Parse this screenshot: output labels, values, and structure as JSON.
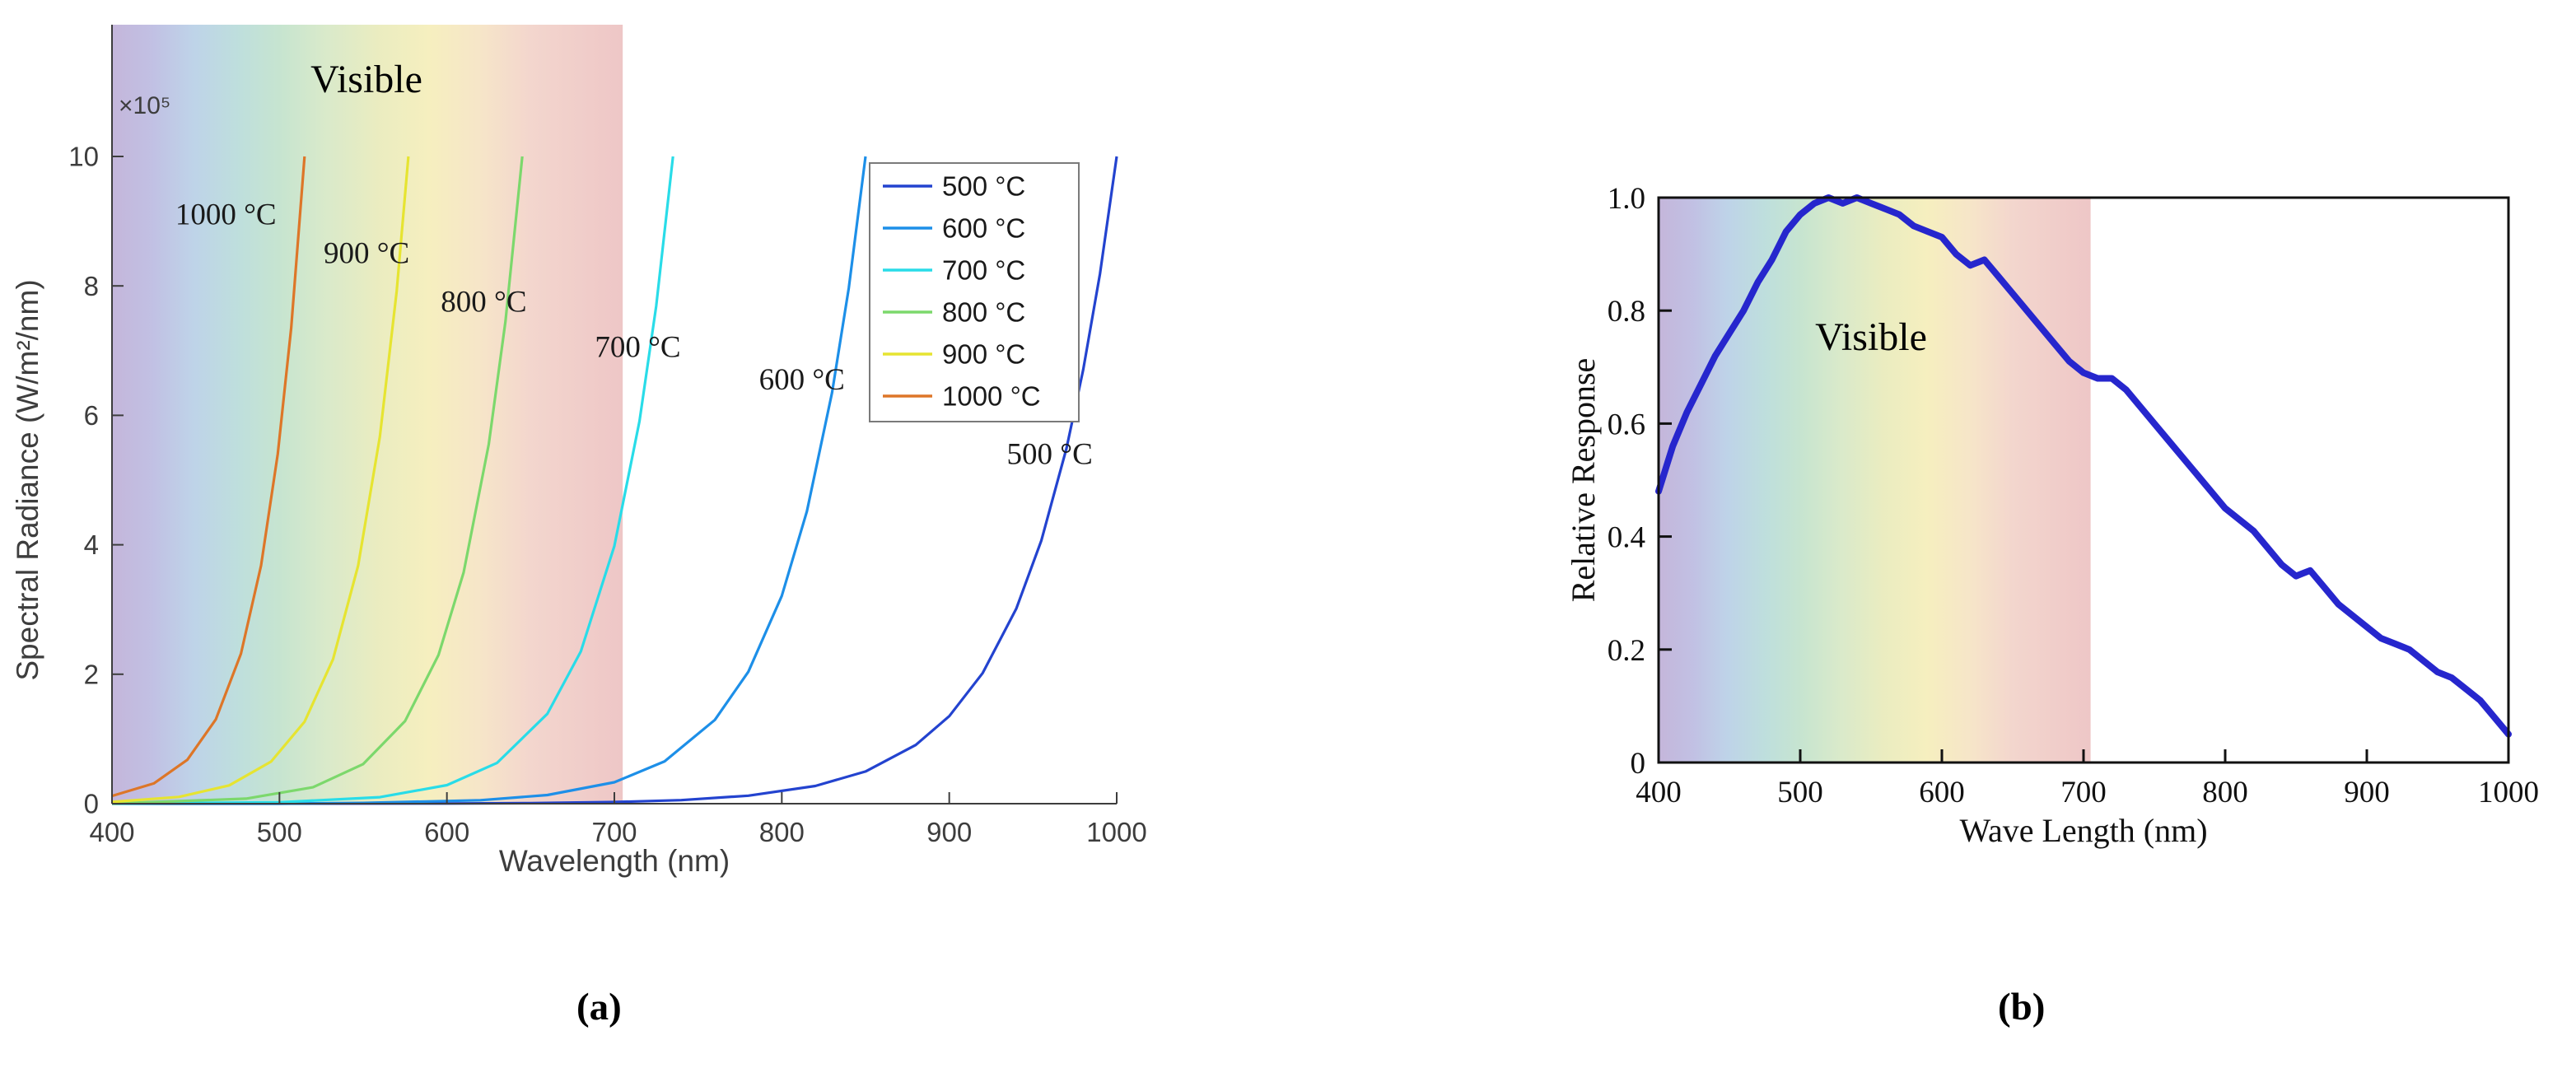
{
  "figure": {
    "captions": {
      "a": "(a)",
      "b": "(b)"
    }
  },
  "chart_data": [
    {
      "id": "spectral_radiance",
      "type": "line",
      "title": "",
      "xlabel": "Wavelength (nm)",
      "ylabel": "Spectral Radiance (W/m²/nm)",
      "y_exponent_label": "×10⁵",
      "xlim": [
        400,
        1000
      ],
      "ylim": [
        0,
        10
      ],
      "xticks": [
        400,
        500,
        600,
        700,
        800,
        900,
        1000
      ],
      "xtick_labels": [
        "400",
        "500",
        "600",
        "700",
        "800",
        "900",
        "1000"
      ],
      "yticks": [
        0,
        2,
        4,
        6,
        8,
        10
      ],
      "ytick_labels": [
        "0",
        "2",
        "4",
        "6",
        "8",
        "10"
      ],
      "grid": false,
      "axis_color": "#3d3d3d",
      "visible_band": {
        "label": "Visible",
        "x_start": 400,
        "x_end": 705,
        "gradient": [
          {
            "offset": 0.0,
            "color": "rgba(148,122,188,0.55)"
          },
          {
            "offset": 0.08,
            "color": "rgba(132,130,200,0.50)"
          },
          {
            "offset": 0.16,
            "color": "rgba(112,158,205,0.45)"
          },
          {
            "offset": 0.25,
            "color": "rgba(112,184,178,0.45)"
          },
          {
            "offset": 0.33,
            "color": "rgba(130,196,150,0.45)"
          },
          {
            "offset": 0.42,
            "color": "rgba(172,208,138,0.45)"
          },
          {
            "offset": 0.52,
            "color": "rgba(214,218,130,0.50)"
          },
          {
            "offset": 0.62,
            "color": "rgba(238,226,138,0.55)"
          },
          {
            "offset": 0.72,
            "color": "rgba(238,206,150,0.52)"
          },
          {
            "offset": 0.82,
            "color": "rgba(232,176,160,0.52)"
          },
          {
            "offset": 1.0,
            "color": "rgba(224,152,152,0.55)"
          }
        ]
      },
      "legend": {
        "position": "upper right",
        "border_color": "#7a7a7a",
        "entries": [
          "500 °C",
          "600 °C",
          "700 °C",
          "800 °C",
          "900 °C",
          "1000 °C"
        ]
      },
      "annotations": [
        {
          "text": "1000 °C",
          "x": 468,
          "y": 8.95
        },
        {
          "text": "900 °C",
          "x": 552,
          "y": 8.35
        },
        {
          "text": "800 °C",
          "x": 622,
          "y": 7.6
        },
        {
          "text": "700 °C",
          "x": 714,
          "y": 6.9
        },
        {
          "text": "600 °C",
          "x": 812,
          "y": 6.4
        },
        {
          "text": "500 °C",
          "x": 960,
          "y": 5.25
        }
      ],
      "series": [
        {
          "name": "500 °C",
          "color": "#2343cf",
          "x": [
            400,
            500,
            600,
            650,
            700,
            740,
            780,
            820,
            850,
            880,
            900,
            920,
            940,
            955,
            970,
            980,
            990,
            1000
          ],
          "y": [
            0,
            0,
            0.003,
            0.009,
            0.025,
            0.055,
            0.123,
            0.273,
            0.498,
            0.907,
            1.353,
            2.019,
            3.012,
            4.066,
            5.488,
            6.703,
            8.187,
            10
          ]
        },
        {
          "name": "600 °C",
          "color": "#1d8fe8",
          "x": [
            400,
            500,
            550,
            620,
            660,
            700,
            730,
            760,
            780,
            800,
            815,
            830,
            840,
            850
          ],
          "y": [
            0,
            0,
            0.011,
            0.054,
            0.133,
            0.331,
            0.654,
            1.294,
            2.038,
            3.21,
            4.516,
            6.347,
            7.97,
            10
          ]
        },
        {
          "name": "700 °C",
          "color": "#29dce8",
          "x": [
            400,
            500,
            560,
            600,
            630,
            660,
            680,
            700,
            715,
            725,
            735
          ],
          "y": [
            0,
            0.021,
            0.1,
            0.286,
            0.631,
            1.389,
            2.353,
            3.981,
            5.908,
            7.687,
            10
          ]
        },
        {
          "name": "800 °C",
          "color": "#7cd86c",
          "x": [
            400,
            480,
            520,
            550,
            575,
            595,
            610,
            625,
            635,
            645
          ],
          "y": [
            0.001,
            0.078,
            0.253,
            0.612,
            1.275,
            2.298,
            3.574,
            5.554,
            7.454,
            10
          ]
        },
        {
          "name": "900 °C",
          "color": "#e6e431",
          "x": [
            400,
            440,
            470,
            495,
            515,
            532,
            547,
            560,
            570,
            577
          ],
          "y": [
            0.027,
            0.104,
            0.283,
            0.65,
            1.266,
            2.231,
            3.679,
            5.674,
            7.92,
            10
          ]
        },
        {
          "name": "1000 °C",
          "color": "#dd7628",
          "x": [
            400,
            425,
            445,
            462,
            477,
            489,
            499,
            507,
            515
          ],
          "y": [
            0.12,
            0.313,
            0.678,
            1.303,
            2.318,
            3.679,
            5.405,
            7.351,
            10
          ]
        }
      ]
    },
    {
      "id": "relative_response",
      "type": "line",
      "title": "",
      "xlabel": "Wave Length (nm)",
      "ylabel": "Relative Response",
      "xlim": [
        400,
        1000
      ],
      "ylim": [
        0,
        1.0
      ],
      "xticks": [
        400,
        500,
        600,
        700,
        800,
        900,
        1000
      ],
      "xtick_labels": [
        "400",
        "500",
        "600",
        "700",
        "800",
        "900",
        "1000"
      ],
      "yticks": [
        0,
        0.2,
        0.4,
        0.6,
        0.8,
        1.0
      ],
      "ytick_labels": [
        "0",
        "0.2",
        "0.4",
        "0.6",
        "0.8",
        "1.0"
      ],
      "grid": false,
      "box": true,
      "axis_color": "#111111",
      "visible_band": {
        "label": "Visible",
        "x_start": 400,
        "x_end": 705,
        "gradient": [
          {
            "offset": 0.0,
            "color": "rgba(148,122,188,0.55)"
          },
          {
            "offset": 0.08,
            "color": "rgba(132,130,200,0.50)"
          },
          {
            "offset": 0.16,
            "color": "rgba(112,158,205,0.45)"
          },
          {
            "offset": 0.25,
            "color": "rgba(112,184,178,0.45)"
          },
          {
            "offset": 0.33,
            "color": "rgba(130,196,150,0.45)"
          },
          {
            "offset": 0.42,
            "color": "rgba(172,208,138,0.45)"
          },
          {
            "offset": 0.52,
            "color": "rgba(214,218,130,0.50)"
          },
          {
            "offset": 0.62,
            "color": "rgba(238,226,138,0.55)"
          },
          {
            "offset": 0.72,
            "color": "rgba(238,206,150,0.52)"
          },
          {
            "offset": 0.82,
            "color": "rgba(232,176,160,0.52)"
          },
          {
            "offset": 1.0,
            "color": "rgba(224,152,152,0.55)"
          }
        ]
      },
      "series": [
        {
          "name": "relative response",
          "color": "#2626cd",
          "x": [
            400,
            410,
            420,
            430,
            440,
            450,
            460,
            470,
            480,
            490,
            500,
            510,
            520,
            530,
            540,
            550,
            560,
            570,
            580,
            590,
            600,
            610,
            620,
            630,
            640,
            650,
            660,
            670,
            680,
            690,
            700,
            710,
            720,
            730,
            740,
            750,
            760,
            770,
            780,
            790,
            800,
            810,
            820,
            830,
            840,
            850,
            860,
            870,
            880,
            890,
            900,
            910,
            920,
            930,
            940,
            950,
            960,
            970,
            980,
            990,
            1000
          ],
          "y": [
            0.48,
            0.56,
            0.62,
            0.67,
            0.72,
            0.76,
            0.8,
            0.85,
            0.89,
            0.94,
            0.97,
            0.99,
            1.0,
            0.99,
            1.0,
            0.99,
            0.98,
            0.97,
            0.95,
            0.94,
            0.93,
            0.9,
            0.88,
            0.89,
            0.86,
            0.83,
            0.8,
            0.77,
            0.74,
            0.71,
            0.69,
            0.68,
            0.68,
            0.66,
            0.63,
            0.6,
            0.57,
            0.54,
            0.51,
            0.48,
            0.45,
            0.43,
            0.41,
            0.38,
            0.35,
            0.33,
            0.34,
            0.31,
            0.28,
            0.26,
            0.24,
            0.22,
            0.21,
            0.2,
            0.18,
            0.16,
            0.15,
            0.13,
            0.11,
            0.08,
            0.05
          ]
        }
      ]
    }
  ]
}
